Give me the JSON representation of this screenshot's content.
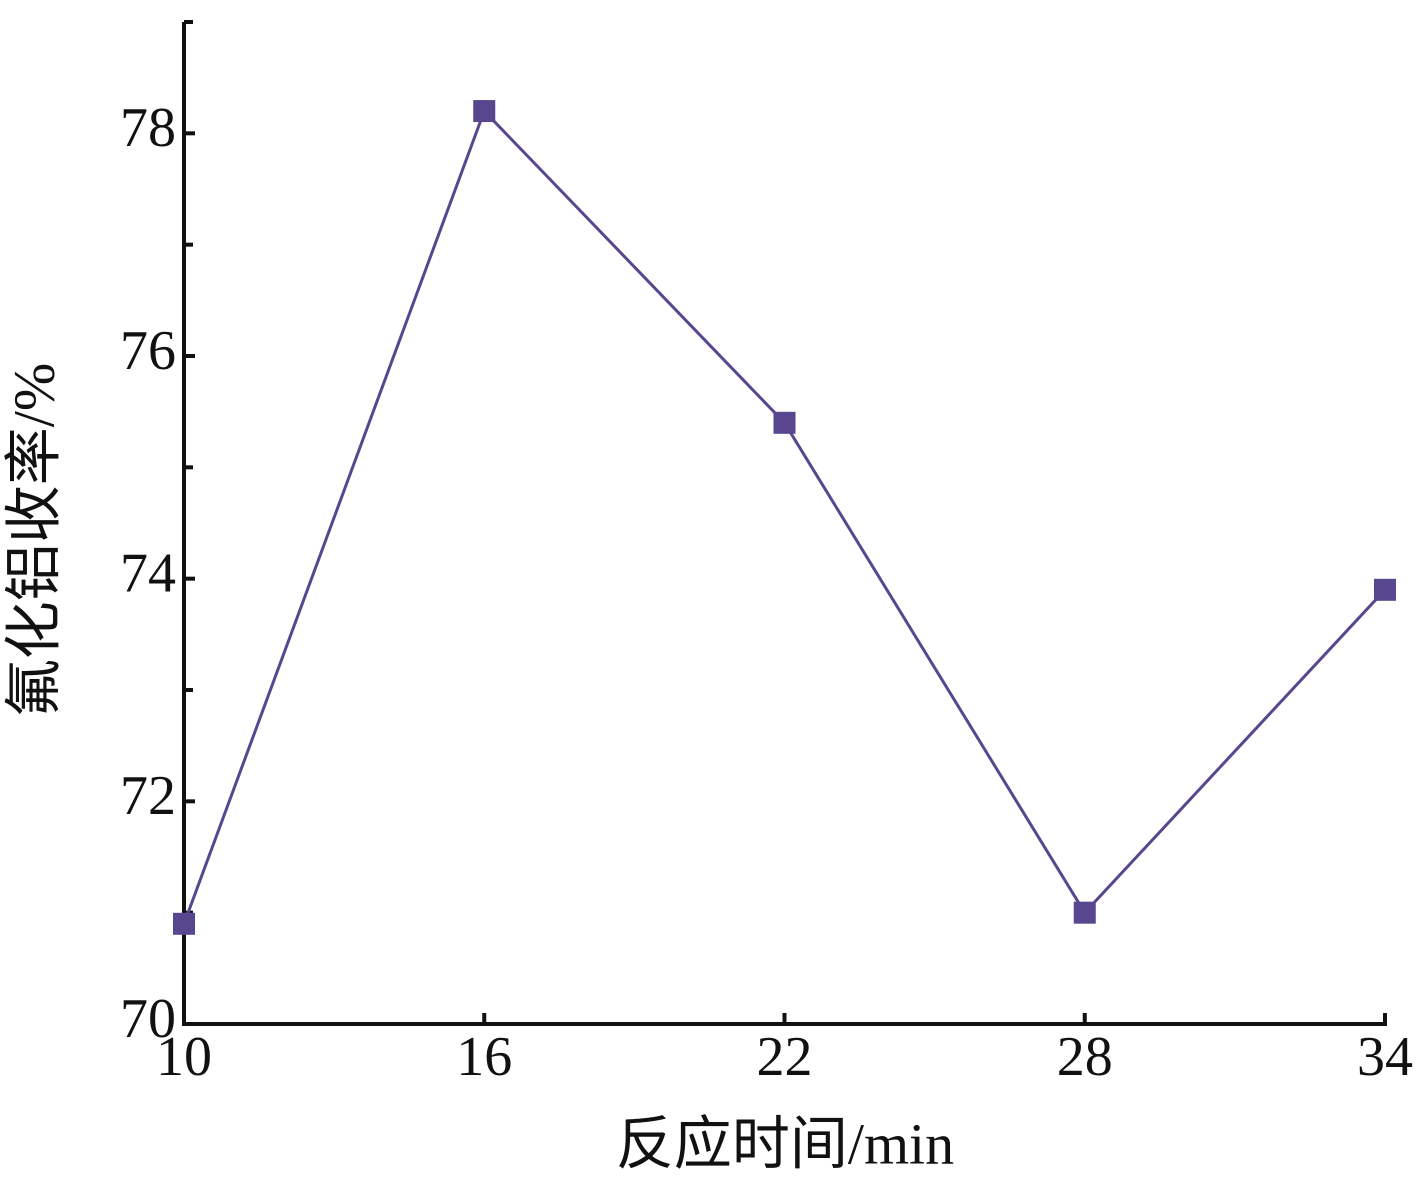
{
  "chart_data": {
    "type": "line",
    "xlabel": "反应时间/min",
    "ylabel": "氟化铝收率/%",
    "x": [
      10,
      16,
      22,
      28,
      34
    ],
    "series": [
      {
        "color": "#58468e",
        "values": [
          70.9,
          78.2,
          75.4,
          71.0,
          73.9
        ]
      }
    ],
    "xlim": [
      10,
      34
    ],
    "xticks": [
      10,
      16,
      22,
      28,
      34
    ],
    "ylim": [
      70,
      79
    ],
    "yticks": [
      70,
      72,
      74,
      76,
      78
    ],
    "yminorticks": [
      71,
      73,
      75,
      77,
      79
    ],
    "grid": false
  }
}
